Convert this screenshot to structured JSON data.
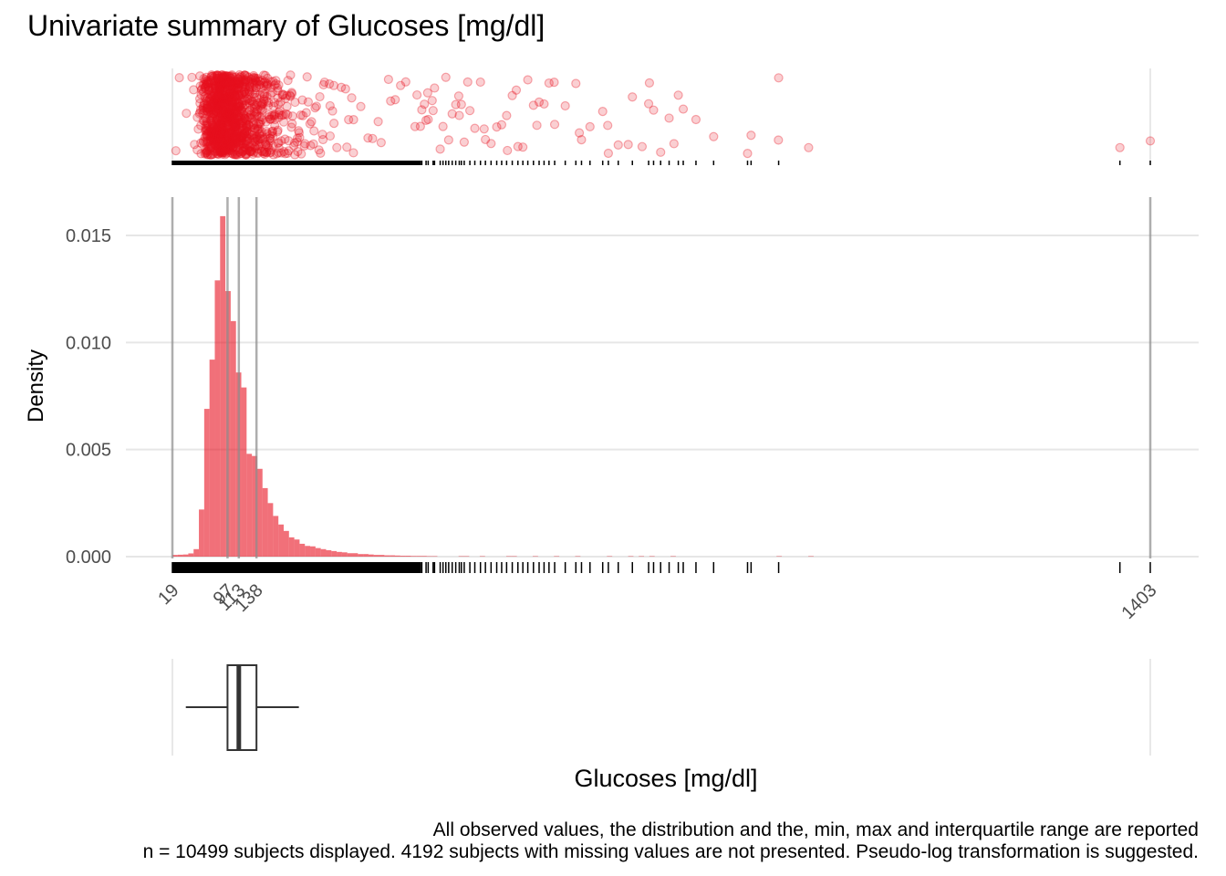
{
  "title": "Univariate summary of Glucoses [mg/dl]",
  "chart_data": {
    "type": "histogram",
    "title": "Univariate summary of Glucoses [mg/dl]",
    "xlabel": "Glucoses [mg/dl]",
    "ylabel": "Density",
    "xlim": [
      19,
      1403
    ],
    "ylim": [
      0,
      0.0168
    ],
    "y_ticks": [
      "0.000",
      "0.005",
      "0.010",
      "0.015"
    ],
    "y_tick_values": [
      0,
      0.005,
      0.01,
      0.015
    ],
    "x_ticks": [
      "19",
      "97",
      "113",
      "138",
      "1403"
    ],
    "x_tick_values": [
      19,
      97,
      113,
      138,
      1403
    ],
    "grid": true,
    "bar_color": "#e8101f",
    "summary": {
      "min": 19,
      "q1": 97,
      "median": 113,
      "q3": 138,
      "max": 1403
    },
    "boxplot": {
      "q1": 97,
      "median": 113,
      "q3": 138,
      "whisker_low": 38,
      "whisker_high": 198
    },
    "bin_width": 7.5,
    "bins": [
      {
        "x0": 19,
        "density": 8e-05
      },
      {
        "x0": 26.5,
        "density": 9e-05
      },
      {
        "x0": 34,
        "density": 0.0001
      },
      {
        "x0": 41.5,
        "density": 0.00015
      },
      {
        "x0": 49,
        "density": 0.00035
      },
      {
        "x0": 56.5,
        "density": 0.0022
      },
      {
        "x0": 64,
        "density": 0.0069
      },
      {
        "x0": 71.5,
        "density": 0.0092
      },
      {
        "x0": 79,
        "density": 0.0129
      },
      {
        "x0": 86.5,
        "density": 0.0159
      },
      {
        "x0": 94,
        "density": 0.0124
      },
      {
        "x0": 101.5,
        "density": 0.011
      },
      {
        "x0": 109,
        "density": 0.0086
      },
      {
        "x0": 116.5,
        "density": 0.0079
      },
      {
        "x0": 124,
        "density": 0.0048
      },
      {
        "x0": 131.5,
        "density": 0.0047
      },
      {
        "x0": 139,
        "density": 0.0041
      },
      {
        "x0": 146.5,
        "density": 0.0032
      },
      {
        "x0": 154,
        "density": 0.0025
      },
      {
        "x0": 161.5,
        "density": 0.0019
      },
      {
        "x0": 169,
        "density": 0.0015
      },
      {
        "x0": 176.5,
        "density": 0.0012
      },
      {
        "x0": 184,
        "density": 0.0009
      },
      {
        "x0": 191.5,
        "density": 0.0008
      },
      {
        "x0": 199,
        "density": 0.0006
      },
      {
        "x0": 206.5,
        "density": 0.0005
      },
      {
        "x0": 214,
        "density": 0.00048
      },
      {
        "x0": 221.5,
        "density": 0.0004
      },
      {
        "x0": 229,
        "density": 0.00035
      },
      {
        "x0": 236.5,
        "density": 0.0003
      },
      {
        "x0": 244,
        "density": 0.00026
      },
      {
        "x0": 251.5,
        "density": 0.00022
      },
      {
        "x0": 259,
        "density": 0.0002
      },
      {
        "x0": 266.5,
        "density": 0.00016
      },
      {
        "x0": 274,
        "density": 0.00016
      },
      {
        "x0": 281.5,
        "density": 0.00012
      },
      {
        "x0": 289,
        "density": 0.00012
      },
      {
        "x0": 296.5,
        "density": 0.0001
      },
      {
        "x0": 304,
        "density": 8e-05
      },
      {
        "x0": 311.5,
        "density": 8e-05
      },
      {
        "x0": 319,
        "density": 6e-05
      },
      {
        "x0": 326.5,
        "density": 6e-05
      },
      {
        "x0": 334,
        "density": 5e-05
      },
      {
        "x0": 341.5,
        "density": 4e-05
      },
      {
        "x0": 349,
        "density": 4e-05
      },
      {
        "x0": 356.5,
        "density": 3e-05
      },
      {
        "x0": 364,
        "density": 3e-05
      },
      {
        "x0": 371.5,
        "density": 3e-05
      },
      {
        "x0": 379,
        "density": 2e-05
      },
      {
        "x0": 386.5,
        "density": 2e-05
      },
      {
        "x0": 424,
        "density": 2e-05
      },
      {
        "x0": 431.5,
        "density": 2e-05
      },
      {
        "x0": 454,
        "density": 2e-05
      },
      {
        "x0": 491.5,
        "density": 2e-05
      },
      {
        "x0": 499,
        "density": 2e-05
      },
      {
        "x0": 529,
        "density": 2e-05
      },
      {
        "x0": 559,
        "density": 2e-05
      },
      {
        "x0": 589,
        "density": 2e-05
      },
      {
        "x0": 634,
        "density": 2e-05
      },
      {
        "x0": 664,
        "density": 2e-05
      },
      {
        "x0": 679,
        "density": 2e-05
      },
      {
        "x0": 694,
        "density": 2e-05
      },
      {
        "x0": 724,
        "density": 2e-05
      },
      {
        "x0": 874,
        "density": 2e-05
      },
      {
        "x0": 919,
        "density": 2e-05
      }
    ],
    "outlier_values": [
      370,
      372,
      378,
      381,
      388,
      390,
      398,
      402,
      406,
      410,
      415,
      420,
      425,
      428,
      432,
      440,
      447,
      455,
      462,
      470,
      478,
      485,
      492,
      500,
      508,
      515,
      522,
      530,
      538,
      545,
      552,
      560,
      575,
      590,
      598,
      610,
      628,
      636,
      650,
      670,
      693,
      700,
      710,
      722,
      735,
      742,
      760,
      785,
      833,
      838,
      877,
      1360,
      1403
    ]
  },
  "captions": {
    "line1": "All observed values, the distribution and the, min, max and interquartile range are reported",
    "line2": "n = 10499 subjects displayed. 4192 subjects with missing values are not presented. Pseudo-log transformation is suggested."
  }
}
